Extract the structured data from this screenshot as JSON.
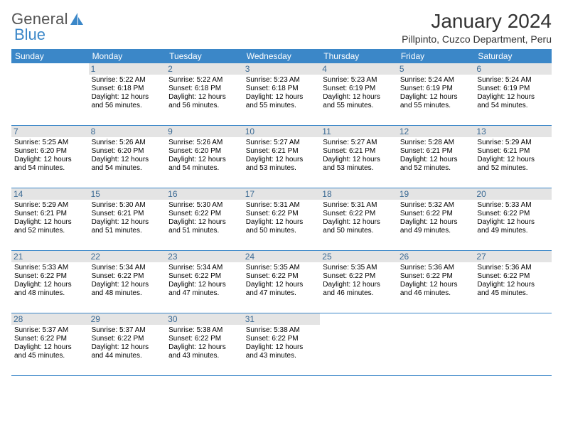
{
  "brand": {
    "word1": "General",
    "word2": "Blue",
    "text_color1": "#555555",
    "text_color2": "#3b87c8"
  },
  "title": "January 2024",
  "location": "Pillpinto, Cuzco Department, Peru",
  "colors": {
    "header_bg": "#3b87c8",
    "header_text": "#ffffff",
    "daynum_bg": "#e4e4e4",
    "daynum_color": "#3b6a94",
    "border": "#3b87c8"
  },
  "weekdays": [
    "Sunday",
    "Monday",
    "Tuesday",
    "Wednesday",
    "Thursday",
    "Friday",
    "Saturday"
  ],
  "days": [
    {
      "n": "",
      "sr": "",
      "ss": "",
      "dl1": "",
      "dl2": "",
      "blank": true
    },
    {
      "n": "1",
      "sr": "Sunrise: 5:22 AM",
      "ss": "Sunset: 6:18 PM",
      "dl1": "Daylight: 12 hours",
      "dl2": "and 56 minutes."
    },
    {
      "n": "2",
      "sr": "Sunrise: 5:22 AM",
      "ss": "Sunset: 6:18 PM",
      "dl1": "Daylight: 12 hours",
      "dl2": "and 56 minutes."
    },
    {
      "n": "3",
      "sr": "Sunrise: 5:23 AM",
      "ss": "Sunset: 6:18 PM",
      "dl1": "Daylight: 12 hours",
      "dl2": "and 55 minutes."
    },
    {
      "n": "4",
      "sr": "Sunrise: 5:23 AM",
      "ss": "Sunset: 6:19 PM",
      "dl1": "Daylight: 12 hours",
      "dl2": "and 55 minutes."
    },
    {
      "n": "5",
      "sr": "Sunrise: 5:24 AM",
      "ss": "Sunset: 6:19 PM",
      "dl1": "Daylight: 12 hours",
      "dl2": "and 55 minutes."
    },
    {
      "n": "6",
      "sr": "Sunrise: 5:24 AM",
      "ss": "Sunset: 6:19 PM",
      "dl1": "Daylight: 12 hours",
      "dl2": "and 54 minutes."
    },
    {
      "n": "7",
      "sr": "Sunrise: 5:25 AM",
      "ss": "Sunset: 6:20 PM",
      "dl1": "Daylight: 12 hours",
      "dl2": "and 54 minutes."
    },
    {
      "n": "8",
      "sr": "Sunrise: 5:26 AM",
      "ss": "Sunset: 6:20 PM",
      "dl1": "Daylight: 12 hours",
      "dl2": "and 54 minutes."
    },
    {
      "n": "9",
      "sr": "Sunrise: 5:26 AM",
      "ss": "Sunset: 6:20 PM",
      "dl1": "Daylight: 12 hours",
      "dl2": "and 54 minutes."
    },
    {
      "n": "10",
      "sr": "Sunrise: 5:27 AM",
      "ss": "Sunset: 6:21 PM",
      "dl1": "Daylight: 12 hours",
      "dl2": "and 53 minutes."
    },
    {
      "n": "11",
      "sr": "Sunrise: 5:27 AM",
      "ss": "Sunset: 6:21 PM",
      "dl1": "Daylight: 12 hours",
      "dl2": "and 53 minutes."
    },
    {
      "n": "12",
      "sr": "Sunrise: 5:28 AM",
      "ss": "Sunset: 6:21 PM",
      "dl1": "Daylight: 12 hours",
      "dl2": "and 52 minutes."
    },
    {
      "n": "13",
      "sr": "Sunrise: 5:29 AM",
      "ss": "Sunset: 6:21 PM",
      "dl1": "Daylight: 12 hours",
      "dl2": "and 52 minutes."
    },
    {
      "n": "14",
      "sr": "Sunrise: 5:29 AM",
      "ss": "Sunset: 6:21 PM",
      "dl1": "Daylight: 12 hours",
      "dl2": "and 52 minutes."
    },
    {
      "n": "15",
      "sr": "Sunrise: 5:30 AM",
      "ss": "Sunset: 6:21 PM",
      "dl1": "Daylight: 12 hours",
      "dl2": "and 51 minutes."
    },
    {
      "n": "16",
      "sr": "Sunrise: 5:30 AM",
      "ss": "Sunset: 6:22 PM",
      "dl1": "Daylight: 12 hours",
      "dl2": "and 51 minutes."
    },
    {
      "n": "17",
      "sr": "Sunrise: 5:31 AM",
      "ss": "Sunset: 6:22 PM",
      "dl1": "Daylight: 12 hours",
      "dl2": "and 50 minutes."
    },
    {
      "n": "18",
      "sr": "Sunrise: 5:31 AM",
      "ss": "Sunset: 6:22 PM",
      "dl1": "Daylight: 12 hours",
      "dl2": "and 50 minutes."
    },
    {
      "n": "19",
      "sr": "Sunrise: 5:32 AM",
      "ss": "Sunset: 6:22 PM",
      "dl1": "Daylight: 12 hours",
      "dl2": "and 49 minutes."
    },
    {
      "n": "20",
      "sr": "Sunrise: 5:33 AM",
      "ss": "Sunset: 6:22 PM",
      "dl1": "Daylight: 12 hours",
      "dl2": "and 49 minutes."
    },
    {
      "n": "21",
      "sr": "Sunrise: 5:33 AM",
      "ss": "Sunset: 6:22 PM",
      "dl1": "Daylight: 12 hours",
      "dl2": "and 48 minutes."
    },
    {
      "n": "22",
      "sr": "Sunrise: 5:34 AM",
      "ss": "Sunset: 6:22 PM",
      "dl1": "Daylight: 12 hours",
      "dl2": "and 48 minutes."
    },
    {
      "n": "23",
      "sr": "Sunrise: 5:34 AM",
      "ss": "Sunset: 6:22 PM",
      "dl1": "Daylight: 12 hours",
      "dl2": "and 47 minutes."
    },
    {
      "n": "24",
      "sr": "Sunrise: 5:35 AM",
      "ss": "Sunset: 6:22 PM",
      "dl1": "Daylight: 12 hours",
      "dl2": "and 47 minutes."
    },
    {
      "n": "25",
      "sr": "Sunrise: 5:35 AM",
      "ss": "Sunset: 6:22 PM",
      "dl1": "Daylight: 12 hours",
      "dl2": "and 46 minutes."
    },
    {
      "n": "26",
      "sr": "Sunrise: 5:36 AM",
      "ss": "Sunset: 6:22 PM",
      "dl1": "Daylight: 12 hours",
      "dl2": "and 46 minutes."
    },
    {
      "n": "27",
      "sr": "Sunrise: 5:36 AM",
      "ss": "Sunset: 6:22 PM",
      "dl1": "Daylight: 12 hours",
      "dl2": "and 45 minutes."
    },
    {
      "n": "28",
      "sr": "Sunrise: 5:37 AM",
      "ss": "Sunset: 6:22 PM",
      "dl1": "Daylight: 12 hours",
      "dl2": "and 45 minutes."
    },
    {
      "n": "29",
      "sr": "Sunrise: 5:37 AM",
      "ss": "Sunset: 6:22 PM",
      "dl1": "Daylight: 12 hours",
      "dl2": "and 44 minutes."
    },
    {
      "n": "30",
      "sr": "Sunrise: 5:38 AM",
      "ss": "Sunset: 6:22 PM",
      "dl1": "Daylight: 12 hours",
      "dl2": "and 43 minutes."
    },
    {
      "n": "31",
      "sr": "Sunrise: 5:38 AM",
      "ss": "Sunset: 6:22 PM",
      "dl1": "Daylight: 12 hours",
      "dl2": "and 43 minutes."
    },
    {
      "n": "",
      "sr": "",
      "ss": "",
      "dl1": "",
      "dl2": "",
      "blank": true
    },
    {
      "n": "",
      "sr": "",
      "ss": "",
      "dl1": "",
      "dl2": "",
      "blank": true
    },
    {
      "n": "",
      "sr": "",
      "ss": "",
      "dl1": "",
      "dl2": "",
      "blank": true
    }
  ]
}
